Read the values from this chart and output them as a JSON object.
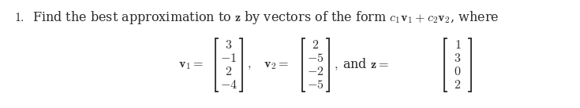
{
  "bg_color": "#ffffff",
  "text_color": "#2b2b2b",
  "line1": "1.\\;\\; \\text{Find the best approximation to } \\mathbf{z} \\text{ by vectors of the form } c_1\\mathbf{v}_1 + c_2\\mathbf{v}_2\\text{, where}",
  "v1": [
    "3",
    "-1",
    "2",
    "-4"
  ],
  "v2": [
    "2",
    "-5",
    "-2",
    "-5"
  ],
  "z": [
    "1",
    "3",
    "0",
    "2"
  ],
  "figwidth": 7.35,
  "figheight": 1.38,
  "dpi": 100
}
